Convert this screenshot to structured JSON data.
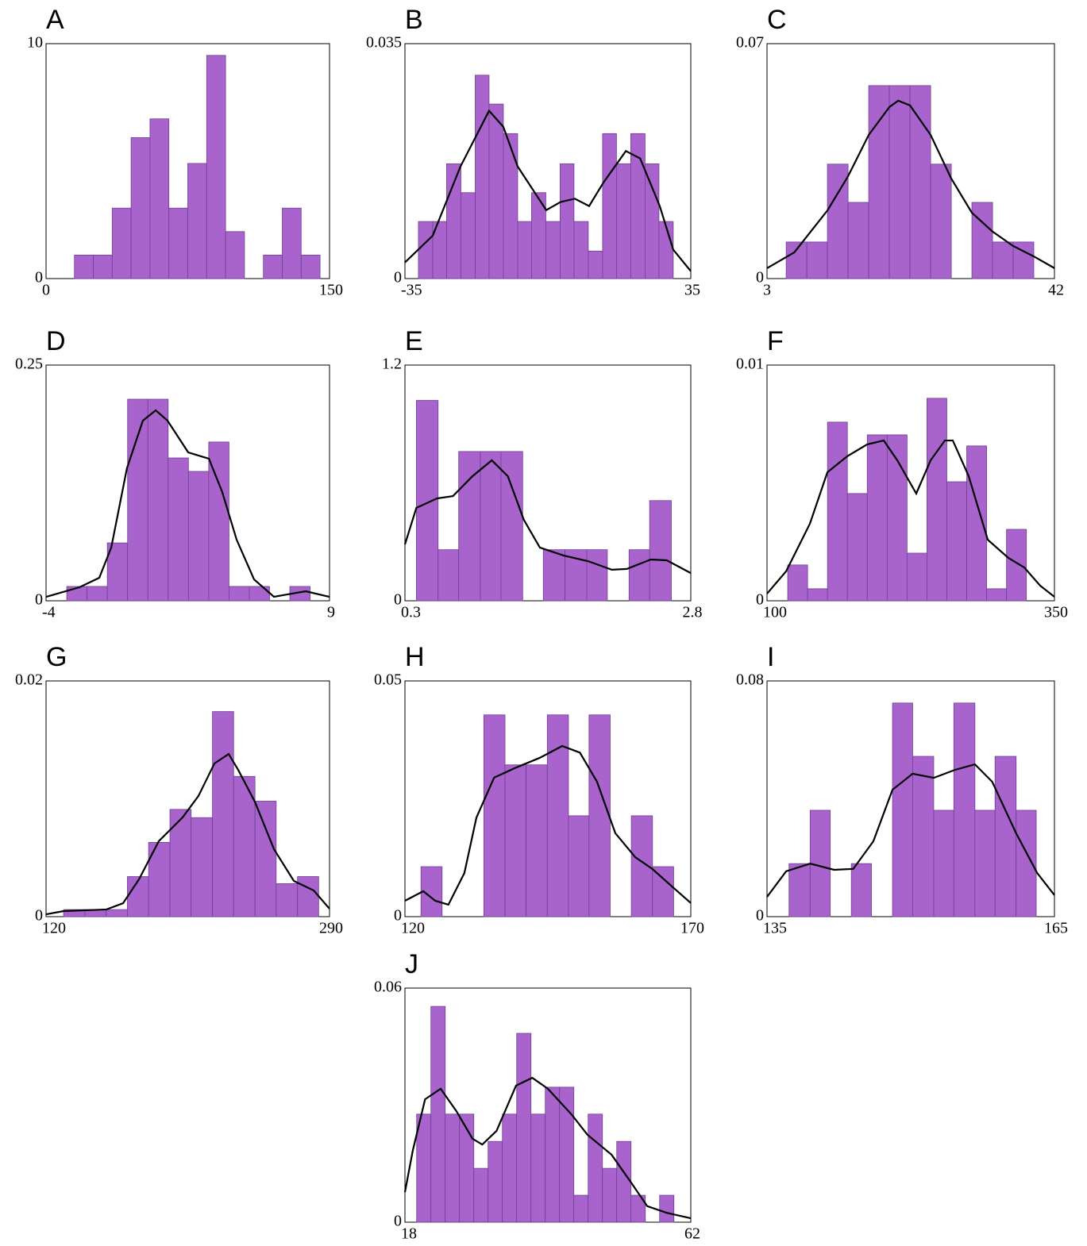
{
  "chart_data": [
    {
      "type": "histogram",
      "title": "A",
      "color": "#a864cc",
      "bins": [
        15,
        25,
        35,
        45,
        55,
        65,
        75,
        85,
        95,
        105,
        115,
        125,
        135,
        145
      ],
      "counts": [
        1,
        1,
        3,
        6,
        6.8,
        3,
        4.9,
        9.5,
        2,
        0,
        1,
        3,
        1
      ],
      "xlim": [
        0,
        150
      ],
      "ylim": [
        0,
        10
      ],
      "xticks": [
        0,
        150
      ],
      "yticks": [
        0,
        10
      ]
    },
    {
      "type": "histogram",
      "title": "B",
      "color": "#a864cc",
      "bins": [
        -31.7,
        -28.2,
        -24.8,
        -21.3,
        -17.8,
        -14.4,
        -10.9,
        -7.4,
        -4.0,
        -0.5,
        3.0,
        6.4,
        9.9,
        13.4,
        16.8,
        20.3,
        23.8,
        27.2,
        30.7
      ],
      "counts": [
        0.0085,
        0.0085,
        0.0171,
        0.0128,
        0.0303,
        0.026,
        0.0216,
        0.0085,
        0.0128,
        0.0085,
        0.0171,
        0.0085,
        0.0041,
        0.0216,
        0.0171,
        0.0216,
        0.0171,
        0.0085
      ],
      "kde": {
        "color": "#000000",
        "x": [
          -35,
          -28.2,
          -21.4,
          -14.4,
          -10.9,
          -7.4,
          -0.4,
          3.1,
          6.6,
          10.1,
          13.6,
          19.1,
          22.6,
          27.4,
          30.7,
          35
        ],
        "values": [
          0.0024,
          0.0064,
          0.0167,
          0.025,
          0.0226,
          0.0167,
          0.0102,
          0.0114,
          0.0119,
          0.0108,
          0.0143,
          0.019,
          0.0179,
          0.0108,
          0.0043,
          0.0011
        ]
      },
      "xlim": [
        -35,
        35
      ],
      "ylim": [
        0,
        0.035
      ],
      "xticks": [
        -35,
        35
      ],
      "yticks": [
        0,
        0.035
      ]
    },
    {
      "type": "histogram",
      "title": "C",
      "color": "#a864cc",
      "bins": [
        5.6,
        8.4,
        11.2,
        14.0,
        16.8,
        19.6,
        22.4,
        25.2,
        28.0,
        30.8,
        33.6,
        36.4,
        39.2
      ],
      "counts": [
        0.0109,
        0.0109,
        0.0341,
        0.0227,
        0.0575,
        0.0575,
        0.0575,
        0.0341,
        0,
        0.0227,
        0.0109,
        0.0109
      ],
      "kde": {
        "color": "#000000",
        "x": [
          3,
          6.7,
          11.2,
          14.0,
          16.8,
          19.6,
          20.8,
          22.4,
          25.2,
          28.0,
          30.8,
          33.6,
          36.4,
          39.2,
          42
        ],
        "values": [
          0.0031,
          0.0078,
          0.0203,
          0.0305,
          0.0428,
          0.0511,
          0.053,
          0.0516,
          0.0428,
          0.0298,
          0.0196,
          0.014,
          0.0097,
          0.0066,
          0.0031
        ]
      },
      "xlim": [
        3,
        42
      ],
      "ylim": [
        0,
        0.07
      ],
      "xticks": [
        3,
        42
      ],
      "yticks": [
        0,
        0.07
      ]
    },
    {
      "type": "histogram",
      "title": "D",
      "color": "#a864cc",
      "bins": [
        -3.05,
        -2.12,
        -1.19,
        -0.26,
        0.67,
        1.6,
        2.53,
        3.46,
        4.39,
        5.32,
        6.25,
        7.18,
        8.11
      ],
      "counts": [
        0.0152,
        0.0152,
        0.0614,
        0.2138,
        0.2138,
        0.1515,
        0.1372,
        0.1684,
        0.0152,
        0.0152,
        0,
        0.0152
      ],
      "kde": {
        "color": "#000000",
        "x": [
          -4,
          -2.47,
          -1.56,
          -1.01,
          -0.29,
          0.44,
          1.03,
          1.57,
          2.52,
          3.47,
          4.08,
          4.74,
          5.54,
          6.45,
          7.91,
          9
        ],
        "values": [
          0.0042,
          0.0143,
          0.0244,
          0.0564,
          0.1406,
          0.1911,
          0.202,
          0.1911,
          0.1574,
          0.1507,
          0.1153,
          0.0648,
          0.0227,
          0.0042,
          0.0101,
          0.0042
        ]
      },
      "xlim": [
        -4,
        9
      ],
      "ylim": [
        0,
        0.25
      ],
      "xticks": [
        -4,
        9
      ],
      "yticks": [
        0,
        0.25
      ]
    },
    {
      "type": "histogram",
      "title": "E",
      "color": "#a864cc",
      "bins": [
        0.4,
        0.59,
        0.77,
        0.96,
        1.14,
        1.33,
        1.51,
        1.7,
        1.89,
        2.07,
        2.26,
        2.44,
        2.63
      ],
      "counts": [
        1.02,
        0.26,
        0.76,
        0.76,
        0.76,
        0,
        0.26,
        0.26,
        0.26,
        0,
        0.26,
        0.51
      ],
      "kde": {
        "color": "#000000",
        "x": [
          0.3,
          0.4,
          0.58,
          0.72,
          0.89,
          1.06,
          1.2,
          1.34,
          1.48,
          1.69,
          1.9,
          2.11,
          2.24,
          2.45,
          2.59,
          2.8
        ],
        "values": [
          0.287,
          0.473,
          0.521,
          0.533,
          0.634,
          0.715,
          0.634,
          0.412,
          0.271,
          0.23,
          0.202,
          0.158,
          0.162,
          0.21,
          0.206,
          0.141
        ]
      },
      "xlim": [
        0.3,
        2.8
      ],
      "ylim": [
        0,
        1.2
      ],
      "xticks": [
        0.3,
        2.8
      ],
      "yticks": [
        0,
        1.2
      ]
    },
    {
      "type": "histogram",
      "title": "F",
      "color": "#a864cc",
      "bins": [
        118,
        135.3,
        152.6,
        169.9,
        187.2,
        204.5,
        221.8,
        239.1,
        256.4,
        273.7,
        291,
        308.3,
        325.6
      ],
      "counts": [
        0.00152,
        0.00051,
        0.00758,
        0.00455,
        0.00704,
        0.00704,
        0.00202,
        0.00859,
        0.00505,
        0.00657,
        0.00051,
        0.00303
      ],
      "kde": {
        "color": "#000000",
        "x": [
          100,
          116.6,
          137.3,
          152.5,
          169.8,
          187.0,
          201.5,
          213.3,
          229.8,
          242.3,
          254.7,
          261.6,
          275.4,
          292.0,
          309.9,
          323.8,
          337.6,
          350
        ],
        "values": [
          0.0003,
          0.00125,
          0.00327,
          0.00545,
          0.00613,
          0.00663,
          0.0068,
          0.00596,
          0.00455,
          0.00596,
          0.0068,
          0.0068,
          0.00529,
          0.00259,
          0.00182,
          0.00141,
          0.00064,
          0.00017
        ]
      },
      "xlim": [
        100,
        350
      ],
      "ylim": [
        0,
        0.01
      ],
      "xticks": [
        100,
        350
      ],
      "yticks": [
        0,
        0.01
      ]
    },
    {
      "type": "histogram",
      "title": "G",
      "color": "#a864cc",
      "bins": [
        130.5,
        143.3,
        156.0,
        168.8,
        181.5,
        194.3,
        207.0,
        219.8,
        232.5,
        245.3,
        258.0,
        270.8,
        283.5
      ],
      "counts": [
        0.0006,
        0.0006,
        0.0006,
        0.0034,
        0.0063,
        0.0091,
        0.0084,
        0.0174,
        0.0119,
        0.0098,
        0.0028,
        0.0034
      ],
      "kde": {
        "color": "#000000",
        "x": [
          120,
          130.5,
          156.2,
          166.2,
          175.7,
          187.6,
          201.9,
          211.4,
          221.0,
          229.5,
          235.2,
          245.2,
          256.7,
          268.6,
          280.5,
          290
        ],
        "values": [
          0.0002,
          0.00047,
          0.00061,
          0.00114,
          0.00316,
          0.0064,
          0.00842,
          0.01024,
          0.013,
          0.0138,
          0.01246,
          0.00976,
          0.00572,
          0.00303,
          0.00222,
          0.00067
        ]
      },
      "xlim": [
        120,
        290
      ],
      "ylim": [
        0,
        0.02
      ],
      "xticks": [
        120,
        290
      ],
      "yticks": [
        0,
        0.02
      ]
    },
    {
      "type": "histogram",
      "title": "H",
      "color": "#a864cc",
      "bins": [
        122.8,
        126.5,
        130.2,
        133.8,
        137.5,
        141.2,
        144.9,
        148.6,
        152.2,
        155.9,
        159.6,
        163.3,
        167.0
      ],
      "counts": [
        0.0106,
        0,
        0,
        0.0428,
        0.0322,
        0.0322,
        0.0428,
        0.0214,
        0.0428,
        0,
        0.0214,
        0.0106
      ],
      "kde": {
        "color": "#000000",
        "x": [
          120,
          123.2,
          125.3,
          127.6,
          130.4,
          132.5,
          135.6,
          139.4,
          143.6,
          147.5,
          150.6,
          153.6,
          156.8,
          160.3,
          163.3,
          166.9,
          170
        ],
        "values": [
          0.00337,
          0.00539,
          0.00337,
          0.00253,
          0.00926,
          0.021,
          0.0295,
          0.0316,
          0.0337,
          0.0362,
          0.0348,
          0.0286,
          0.0177,
          0.0126,
          0.0101,
          0.0062,
          0.0029
        ]
      },
      "xlim": [
        120,
        170
      ],
      "ylim": [
        0,
        0.05
      ],
      "xticks": [
        120,
        170
      ],
      "yticks": [
        0,
        0.05
      ]
    },
    {
      "type": "histogram",
      "title": "I",
      "color": "#a864cc",
      "bins": [
        137.3,
        139.5,
        141.6,
        143.8,
        145.9,
        148.1,
        150.2,
        152.4,
        154.5,
        156.7,
        158.8,
        161.0,
        163.1
      ],
      "counts": [
        0.018,
        0.0361,
        0,
        0.018,
        0,
        0.0725,
        0.0544,
        0.0361,
        0.0725,
        0.0361,
        0.0544,
        0.0361
      ],
      "kde": {
        "color": "#000000",
        "x": [
          135,
          137.0,
          139.5,
          142.0,
          144.0,
          146.1,
          148.1,
          150.2,
          152.4,
          154.6,
          156.7,
          158.5,
          161.0,
          163.2,
          165
        ],
        "values": [
          0.0067,
          0.0154,
          0.018,
          0.0159,
          0.0162,
          0.0256,
          0.0431,
          0.0485,
          0.0471,
          0.0498,
          0.0517,
          0.0458,
          0.0283,
          0.0148,
          0.0073
        ]
      },
      "xlim": [
        135,
        165
      ],
      "ylim": [
        0,
        0.08
      ],
      "xticks": [
        135,
        165
      ],
      "yticks": [
        0,
        0.08
      ]
    },
    {
      "type": "histogram",
      "title": "J",
      "color": "#a864cc",
      "bins": [
        19.8,
        22.0,
        24.2,
        26.4,
        28.6,
        30.8,
        33.0,
        35.2,
        37.4,
        39.6,
        41.8,
        44.0,
        46.2,
        48.4,
        50.6,
        52.8,
        55.0,
        57.2,
        59.4
      ],
      "counts": [
        0.0277,
        0.0553,
        0.0277,
        0.0277,
        0.0138,
        0.0207,
        0.0277,
        0.0484,
        0.0277,
        0.0346,
        0.0346,
        0.0069,
        0.0277,
        0.0138,
        0.0207,
        0.0069,
        0,
        0.0069
      ],
      "kde": {
        "color": "#000000",
        "x": [
          18,
          19.2,
          21.1,
          23.5,
          25.9,
          28.4,
          29.9,
          32.1,
          35.1,
          37.6,
          40.0,
          43.7,
          46.1,
          49.8,
          52.8,
          55.3,
          58.3,
          62
        ],
        "values": [
          0.0077,
          0.0183,
          0.0315,
          0.0342,
          0.0285,
          0.0214,
          0.0199,
          0.0234,
          0.035,
          0.037,
          0.0342,
          0.0275,
          0.0224,
          0.0173,
          0.0102,
          0.0041,
          0.0024,
          0.001
        ]
      },
      "xlim": [
        18,
        62
      ],
      "ylim": [
        0,
        0.06
      ],
      "xticks": [
        18,
        62
      ],
      "yticks": [
        0,
        0.06
      ]
    }
  ]
}
